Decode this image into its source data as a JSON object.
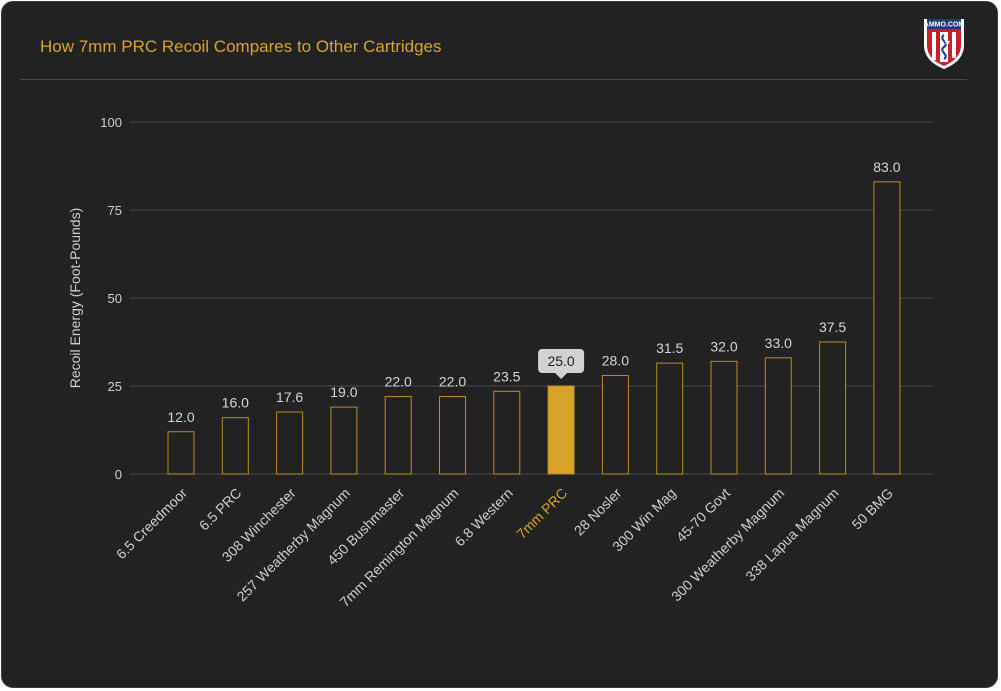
{
  "title": "How 7mm PRC Recoil Compares to Other Cartridges",
  "logo": {
    "text": "AMMO.COM",
    "icon": "shield-logo-icon"
  },
  "colors": {
    "accent": "#d8a528",
    "background": "#222222",
    "grid": "#4a4a4a",
    "bar_outline": "#b8901f",
    "tooltip_bg": "#d2d2d2"
  },
  "chart_data": {
    "type": "bar",
    "title": "How 7mm PRC Recoil Compares to Other Cartridges",
    "xlabel": "",
    "ylabel": "Recoil Energy (Foot-Pounds)",
    "ylim": [
      0,
      100
    ],
    "yticks": [
      0,
      25,
      50,
      75,
      100
    ],
    "grid": true,
    "categories": [
      "6.5 Creedmoor",
      "6.5 PRC",
      "308 Winchester",
      "257 Weatherby Magnum",
      "450 Bushmaster",
      "7mm Remington Magnum",
      "6.8 Western",
      "7mm PRC",
      "28 Nosler",
      "300 Win Mag",
      "45-70 Govt",
      "300 Weatherby Magnum",
      "338 Lapua Magnum",
      "50 BMG"
    ],
    "values": [
      12.0,
      16.0,
      17.6,
      19.0,
      22.0,
      22.0,
      23.5,
      25.0,
      28.0,
      31.5,
      32.0,
      33.0,
      37.5,
      83.0
    ],
    "value_labels": [
      "12.0",
      "16.0",
      "17.6",
      "19.0",
      "22.0",
      "22.0",
      "23.5",
      "25.0",
      "28.0",
      "31.5",
      "32.0",
      "33.0",
      "37.5",
      "83.0"
    ],
    "highlight": "7mm PRC"
  }
}
